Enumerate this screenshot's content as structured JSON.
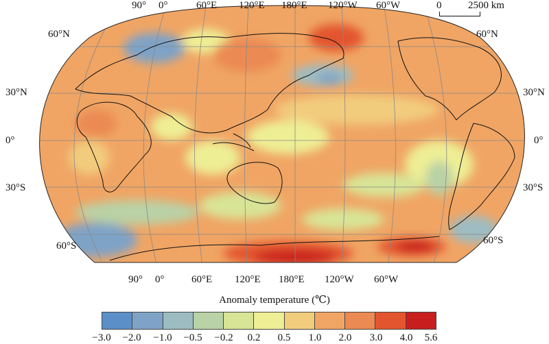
{
  "map": {
    "top_lon_labels": [
      "90°",
      "0°",
      "60°E",
      "120°E",
      "180°E",
      "120°W",
      "60°W"
    ],
    "bottom_lon_labels": [
      "90°",
      "0°",
      "60°E",
      "120°E",
      "180°E",
      "120°W",
      "60°W"
    ],
    "left_lat_labels": [
      "60°N",
      "30°N",
      "0°",
      "30°S",
      "60°S"
    ],
    "right_lat_labels": [
      "60°N",
      "30°N",
      "0°",
      "30°S",
      "60°S"
    ],
    "scale": {
      "start": "0",
      "end": "2500 km"
    }
  },
  "legend": {
    "title": "Anomaly temperature (℃)",
    "tick_labels": [
      "−3.0",
      "−2.0",
      "−1.0",
      "−0.5",
      "−0.2",
      "0.2",
      "0.5",
      "1.0",
      "2.0",
      "3.0",
      "4.0",
      "5.6"
    ],
    "colors": [
      "#5b8fc7",
      "#7ea3c7",
      "#9dbcc2",
      "#b9d2a6",
      "#d8e496",
      "#eeee95",
      "#f2cc7d",
      "#f0a564",
      "#eb8a52",
      "#e3552f",
      "#c81e1e"
    ]
  }
}
